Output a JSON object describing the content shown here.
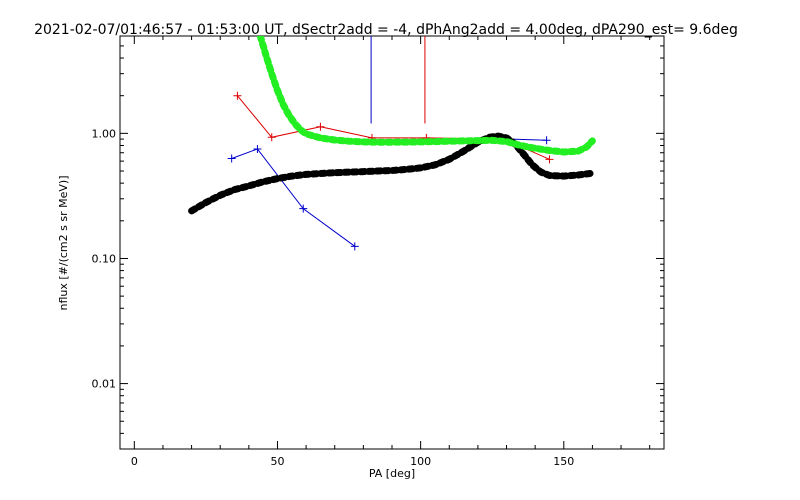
{
  "chart_data": {
    "type": "line",
    "title": "2021-02-07/01:46:57 - 01:53:00 UT, dSectr2add = -4, dPhAng2add = 4.00deg, dPA290_est=   9.6deg",
    "xlabel": "PA [deg]",
    "ylabel": "nflux [#/(cm2 s sr MeV)]",
    "x_scale": "linear",
    "y_scale": "log",
    "xlim": [
      -5,
      185
    ],
    "ylim": [
      0.003,
      6
    ],
    "x_ticks": [
      0,
      50,
      100,
      150
    ],
    "x_tick_labels": [
      "0",
      "50",
      "100",
      "150"
    ],
    "y_ticks": [
      0.01,
      0.1,
      1.0
    ],
    "y_tick_labels": [
      "0.01",
      "0.10",
      "1.00"
    ],
    "grid": false,
    "legend": "none",
    "series": [
      {
        "color": "#0000cc",
        "style": "line-plus",
        "points": [
          [
            34,
            0.63
          ],
          [
            43,
            0.75
          ],
          [
            59,
            0.25
          ],
          [
            77,
            0.125
          ]
        ]
      },
      {
        "color": "#0000cc",
        "style": "line-plus",
        "points": [
          [
            126,
            0.91
          ],
          [
            144,
            0.88
          ]
        ]
      },
      {
        "color": "#dd0000",
        "style": "line-plus",
        "points": [
          [
            36,
            2.0
          ],
          [
            48,
            0.93
          ],
          [
            65,
            1.13
          ],
          [
            83,
            0.92
          ],
          [
            102,
            0.92
          ],
          [
            129,
            0.9
          ],
          [
            145,
            0.62
          ]
        ]
      },
      {
        "color": "#000000",
        "style": "thick-dots",
        "points": [
          [
            20,
            0.24
          ],
          [
            25,
            0.28
          ],
          [
            30,
            0.32
          ],
          [
            35,
            0.355
          ],
          [
            40,
            0.38
          ],
          [
            45,
            0.41
          ],
          [
            50,
            0.435
          ],
          [
            55,
            0.455
          ],
          [
            60,
            0.47
          ],
          [
            65,
            0.478
          ],
          [
            70,
            0.485
          ],
          [
            75,
            0.49
          ],
          [
            80,
            0.495
          ],
          [
            85,
            0.5
          ],
          [
            90,
            0.505
          ],
          [
            95,
            0.515
          ],
          [
            100,
            0.53
          ],
          [
            105,
            0.56
          ],
          [
            110,
            0.62
          ],
          [
            115,
            0.72
          ],
          [
            120,
            0.85
          ],
          [
            124,
            0.93
          ],
          [
            127,
            0.95
          ],
          [
            130,
            0.92
          ],
          [
            133,
            0.82
          ],
          [
            136,
            0.68
          ],
          [
            139,
            0.56
          ],
          [
            142,
            0.49
          ],
          [
            145,
            0.46
          ],
          [
            150,
            0.455
          ],
          [
            155,
            0.465
          ],
          [
            160,
            0.48
          ]
        ]
      },
      {
        "color": "#22ee22",
        "style": "thick-dots",
        "points": [
          [
            44,
            6.0
          ],
          [
            46,
            4.2
          ],
          [
            48,
            3.0
          ],
          [
            50,
            2.2
          ],
          [
            52,
            1.7
          ],
          [
            54,
            1.4
          ],
          [
            56,
            1.2
          ],
          [
            58,
            1.07
          ],
          [
            60,
            0.99
          ],
          [
            65,
            0.92
          ],
          [
            70,
            0.885
          ],
          [
            75,
            0.865
          ],
          [
            80,
            0.855
          ],
          [
            85,
            0.85
          ],
          [
            90,
            0.85
          ],
          [
            95,
            0.852
          ],
          [
            100,
            0.855
          ],
          [
            105,
            0.86
          ],
          [
            110,
            0.865
          ],
          [
            115,
            0.87
          ],
          [
            120,
            0.875
          ],
          [
            125,
            0.88
          ],
          [
            130,
            0.86
          ],
          [
            135,
            0.8
          ],
          [
            140,
            0.76
          ],
          [
            145,
            0.73
          ],
          [
            150,
            0.71
          ],
          [
            155,
            0.72
          ],
          [
            158,
            0.78
          ],
          [
            160,
            0.87
          ]
        ]
      }
    ],
    "vertical_lines": [
      {
        "x": 82.7,
        "y_from": 1.2,
        "y_to": 6,
        "color": "#0000cc"
      },
      {
        "x": 101.5,
        "y_from": 1.2,
        "y_to": 6,
        "color": "#dd0000"
      }
    ]
  }
}
